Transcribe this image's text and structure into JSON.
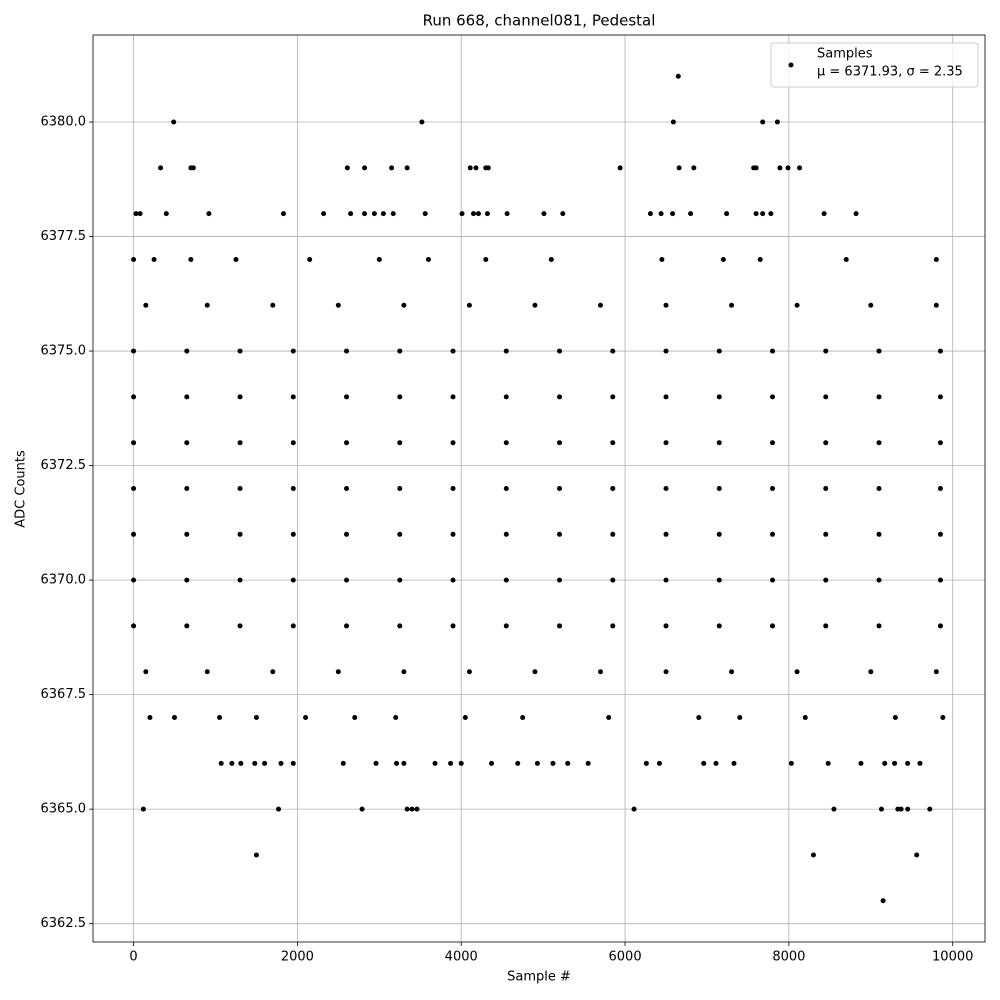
{
  "chart_data": {
    "type": "scatter",
    "title": "Run 668, channel081, Pedestal",
    "x_label": "Sample #",
    "y_label": "ADC Counts",
    "xlim": [
      -495,
      10394
    ],
    "ylim": [
      6362.1,
      6381.9
    ],
    "xticks": [
      0,
      2000,
      4000,
      6000,
      8000,
      10000
    ],
    "yticks": [
      6362.5,
      {
        "value": 6365,
        "label": "6365.0"
      },
      6367.5,
      {
        "value": 6370,
        "label": "6370.0"
      },
      6372.5,
      {
        "value": 6375,
        "label": "6375.0"
      },
      6377.5,
      {
        "value": 6380,
        "label": "6380.0"
      }
    ],
    "grid": true,
    "legend": "upper right",
    "series": [
      {
        "name": "Samples",
        "label_extra": "μ = 6371.93, σ = 2.35",
        "color": "#000000",
        "x": [
          490,
          3520,
          6590,
          7680,
          7860,
          6650,
          330,
          700,
          730,
          2610,
          2820,
          3150,
          3340,
          4110,
          4180,
          4300,
          4330,
          5940,
          6660,
          6840,
          7570,
          7600,
          7890,
          7990,
          8130,
          30,
          80,
          400,
          920,
          1830,
          2320,
          2650,
          2820,
          2940,
          3050,
          3170,
          3560,
          4010,
          4150,
          4210,
          4320,
          4560,
          5010,
          5240,
          6310,
          6440,
          6580,
          6800,
          7240,
          7600,
          7680,
          7780,
          8430,
          8820,
          0,
          250,
          700,
          1250,
          2150,
          3000,
          3600,
          4300,
          5100,
          6450,
          7200,
          7650,
          8700,
          9800,
          150,
          900,
          1700,
          2500,
          3300,
          4100,
          4900,
          5700,
          6500,
          7300,
          8100,
          9000,
          9800,
          0,
          650,
          1300,
          1950,
          2600,
          3250,
          3900,
          4550,
          5200,
          5850,
          6500,
          7150,
          7800,
          8450,
          9100,
          9850,
          0,
          650,
          1300,
          1950,
          2600,
          3250,
          3900,
          4550,
          5200,
          5850,
          6500,
          7150,
          7800,
          8450,
          9100,
          9850,
          0,
          650,
          1300,
          1950,
          2600,
          3250,
          3900,
          4550,
          5200,
          5850,
          6500,
          7150,
          7800,
          8450,
          9100,
          9850,
          0,
          650,
          1300,
          1950,
          2600,
          3250,
          3900,
          4550,
          5200,
          5850,
          6500,
          7150,
          7800,
          8450,
          9100,
          9850,
          0,
          650,
          1300,
          1950,
          2600,
          3250,
          3900,
          4550,
          5200,
          5850,
          6500,
          7150,
          7800,
          8450,
          9100,
          9850,
          0,
          650,
          1300,
          1950,
          2600,
          3250,
          3900,
          4550,
          5200,
          5850,
          6500,
          7150,
          7800,
          8450,
          9100,
          9850,
          0,
          650,
          1300,
          1950,
          2600,
          3250,
          3900,
          4550,
          5200,
          5850,
          6500,
          7150,
          7800,
          8450,
          9100,
          9850,
          150,
          900,
          1700,
          2500,
          3300,
          4100,
          4900,
          5700,
          6500,
          7300,
          8100,
          9000,
          9800,
          200,
          500,
          1050,
          1500,
          2100,
          2700,
          3200,
          4050,
          4750,
          5800,
          6900,
          7400,
          8200,
          9300,
          9880,
          1070,
          1200,
          1310,
          1480,
          1600,
          1800,
          1950,
          2560,
          2960,
          3210,
          3300,
          3680,
          3870,
          4000,
          4370,
          4690,
          4930,
          5120,
          5300,
          5550,
          6260,
          6420,
          6960,
          7110,
          7330,
          8030,
          8480,
          8880,
          9170,
          9290,
          9450,
          9600,
          120,
          1770,
          2790,
          3340,
          3400,
          3460,
          6110,
          8550,
          9130,
          9330,
          9370,
          9450,
          9720,
          1500,
          8300,
          9560,
          9150
        ],
        "values": [
          6380,
          6380,
          6380,
          6380,
          6380,
          6381,
          6379,
          6379,
          6379,
          6379,
          6379,
          6379,
          6379,
          6379,
          6379,
          6379,
          6379,
          6379,
          6379,
          6379,
          6379,
          6379,
          6379,
          6379,
          6379,
          6378,
          6378,
          6378,
          6378,
          6378,
          6378,
          6378,
          6378,
          6378,
          6378,
          6378,
          6378,
          6378,
          6378,
          6378,
          6378,
          6378,
          6378,
          6378,
          6378,
          6378,
          6378,
          6378,
          6378,
          6378,
          6378,
          6378,
          6378,
          6378,
          6377,
          6377,
          6377,
          6377,
          6377,
          6377,
          6377,
          6377,
          6377,
          6377,
          6377,
          6377,
          6377,
          6377,
          6376,
          6376,
          6376,
          6376,
          6376,
          6376,
          6376,
          6376,
          6376,
          6376,
          6376,
          6376,
          6376,
          6375,
          6375,
          6375,
          6375,
          6375,
          6375,
          6375,
          6375,
          6375,
          6375,
          6375,
          6375,
          6375,
          6375,
          6375,
          6375,
          6374,
          6374,
          6374,
          6374,
          6374,
          6374,
          6374,
          6374,
          6374,
          6374,
          6374,
          6374,
          6374,
          6374,
          6374,
          6374,
          6373,
          6373,
          6373,
          6373,
          6373,
          6373,
          6373,
          6373,
          6373,
          6373,
          6373,
          6373,
          6373,
          6373,
          6373,
          6373,
          6372,
          6372,
          6372,
          6372,
          6372,
          6372,
          6372,
          6372,
          6372,
          6372,
          6372,
          6372,
          6372,
          6372,
          6372,
          6372,
          6371,
          6371,
          6371,
          6371,
          6371,
          6371,
          6371,
          6371,
          6371,
          6371,
          6371,
          6371,
          6371,
          6371,
          6371,
          6371,
          6370,
          6370,
          6370,
          6370,
          6370,
          6370,
          6370,
          6370,
          6370,
          6370,
          6370,
          6370,
          6370,
          6370,
          6370,
          6370,
          6369,
          6369,
          6369,
          6369,
          6369,
          6369,
          6369,
          6369,
          6369,
          6369,
          6369,
          6369,
          6369,
          6369,
          6369,
          6369,
          6368,
          6368,
          6368,
          6368,
          6368,
          6368,
          6368,
          6368,
          6368,
          6368,
          6368,
          6368,
          6368,
          6367,
          6367,
          6367,
          6367,
          6367,
          6367,
          6367,
          6367,
          6367,
          6367,
          6367,
          6367,
          6367,
          6367,
          6367,
          6366,
          6366,
          6366,
          6366,
          6366,
          6366,
          6366,
          6366,
          6366,
          6366,
          6366,
          6366,
          6366,
          6366,
          6366,
          6366,
          6366,
          6366,
          6366,
          6366,
          6366,
          6366,
          6366,
          6366,
          6366,
          6366,
          6366,
          6366,
          6366,
          6366,
          6366,
          6366,
          6365,
          6365,
          6365,
          6365,
          6365,
          6365,
          6365,
          6365,
          6365,
          6365,
          6365,
          6365,
          6365,
          6364,
          6364,
          6364,
          6363
        ]
      }
    ]
  }
}
